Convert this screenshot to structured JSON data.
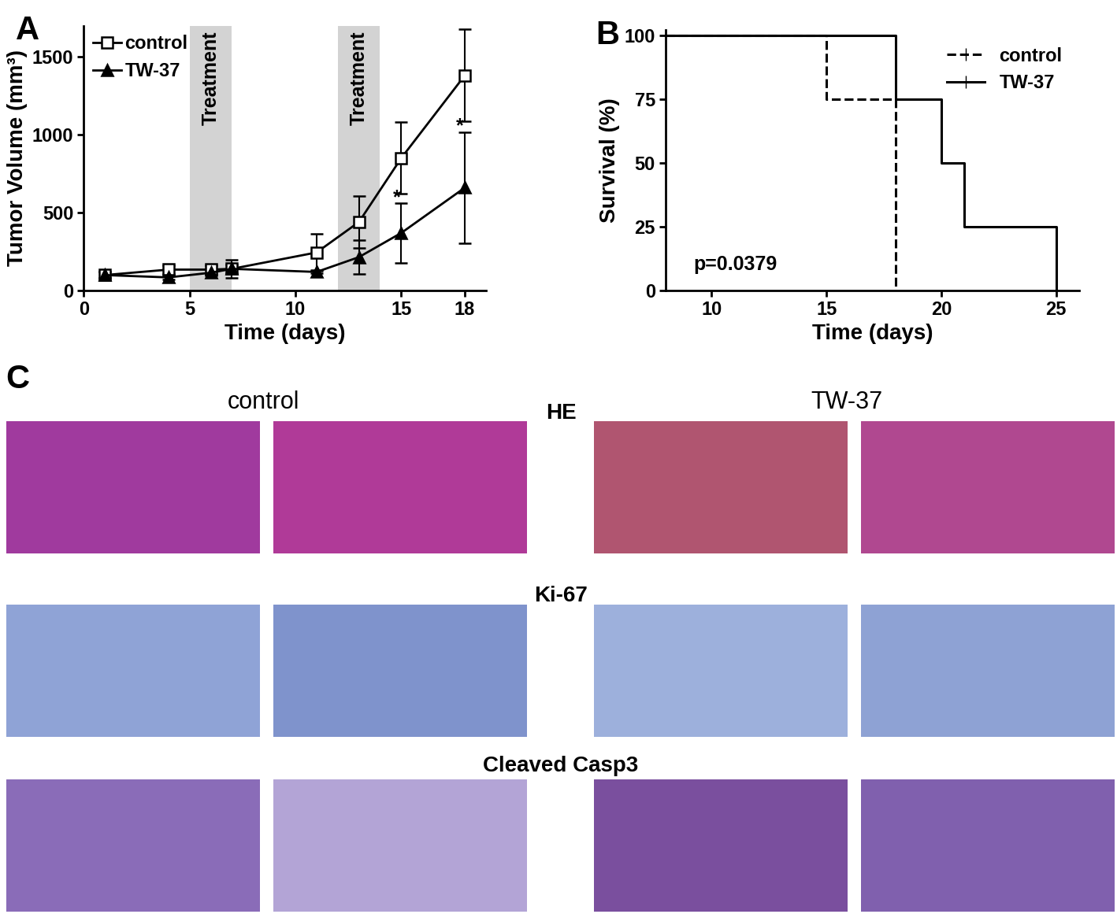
{
  "chart_data": [
    {
      "type": "line",
      "title": "A",
      "x_label": "Time (days)",
      "y_label": "Tumor Volume (mm³)",
      "xlim": [
        0,
        19
      ],
      "xticks": [
        0,
        5,
        10,
        15,
        18
      ],
      "ylim": [
        0,
        1700
      ],
      "yticks": [
        0,
        500,
        1000,
        1500
      ],
      "legend": "upper left",
      "shaded": [
        {
          "range": [
            5,
            7
          ],
          "label": "Treatment"
        },
        {
          "range": [
            12,
            14
          ],
          "label": "Treatment"
        }
      ],
      "annotations": [
        {
          "text": "*",
          "x": 14.6,
          "y": 560
        },
        {
          "text": "*",
          "x": 17.6,
          "y": 1020
        }
      ],
      "series": [
        {
          "name": "control",
          "color": "#000000",
          "marker": "square",
          "x": [
            1,
            4,
            6,
            7,
            11,
            13,
            15,
            18
          ],
          "values": [
            100,
            135,
            135,
            140,
            245,
            440,
            850,
            1380
          ],
          "errors": [
            20,
            30,
            30,
            30,
            120,
            165,
            230,
            295
          ]
        },
        {
          "name": "TW-37",
          "color": "#000000",
          "marker": "triangle",
          "x": [
            1,
            4,
            6,
            7,
            11,
            13,
            15,
            18
          ],
          "values": [
            100,
            85,
            115,
            140,
            120,
            215,
            370,
            660
          ],
          "errors": [
            20,
            15,
            20,
            60,
            10,
            110,
            190,
            355
          ]
        }
      ]
    },
    {
      "type": "step",
      "title": "B",
      "x_label": "Time (days)",
      "y_label": "Survival (%)",
      "xlim": [
        8,
        26
      ],
      "xticks": [
        10,
        15,
        20,
        25
      ],
      "ylim": [
        0,
        102
      ],
      "yticks": [
        0,
        25,
        50,
        75,
        100
      ],
      "legend": "upper right",
      "annotations": [
        {
          "text": "p=0.0379",
          "x": 9.2,
          "y": 8
        }
      ],
      "series": [
        {
          "name": "control",
          "color": "#000000",
          "line_style": "dashed",
          "x": [
            8,
            15,
            18
          ],
          "values": [
            100,
            75,
            0
          ]
        },
        {
          "name": "TW-37",
          "color": "#000000",
          "line_style": "solid",
          "x": [
            8,
            18,
            20,
            21,
            25
          ],
          "values": [
            100,
            75,
            50,
            25,
            0
          ]
        }
      ]
    }
  ],
  "panel_c": {
    "label": "C",
    "groups": [
      "control",
      "TW-37"
    ],
    "rows": [
      "HE",
      "Ki-67",
      "Cleaved Casp3"
    ]
  }
}
